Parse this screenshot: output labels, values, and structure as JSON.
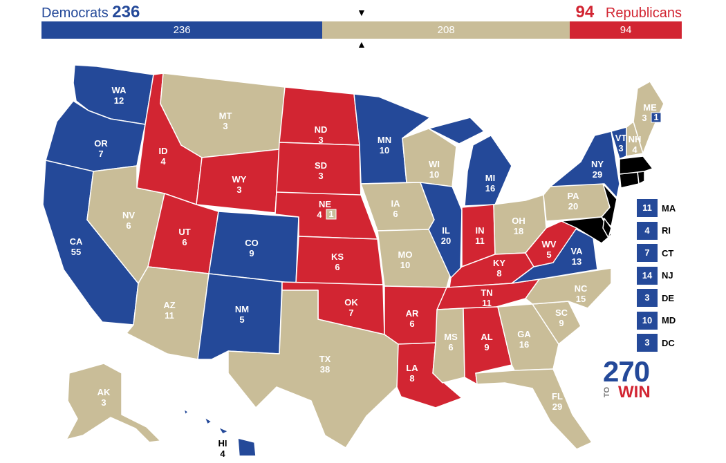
{
  "header": {
    "dem_label": "Democrats",
    "dem_total": "236",
    "rep_label": "Republicans",
    "rep_total": "94"
  },
  "bar": {
    "dem": 236,
    "tossup": 208,
    "rep": 94,
    "dem_text": "236",
    "tossup_text": "208",
    "rep_text": "94"
  },
  "colors": {
    "dem": "#244999",
    "rep": "#d22532",
    "tossup": "#c9bd98"
  },
  "states": {
    "WA": {
      "abbr": "WA",
      "ev": "12",
      "party": "D"
    },
    "OR": {
      "abbr": "OR",
      "ev": "7",
      "party": "D"
    },
    "CA": {
      "abbr": "CA",
      "ev": "55",
      "party": "D"
    },
    "ID": {
      "abbr": "ID",
      "ev": "4",
      "party": "R"
    },
    "NV": {
      "abbr": "NV",
      "ev": "6",
      "party": "T"
    },
    "MT": {
      "abbr": "MT",
      "ev": "3",
      "party": "T"
    },
    "WY": {
      "abbr": "WY",
      "ev": "3",
      "party": "R"
    },
    "UT": {
      "abbr": "UT",
      "ev": "6",
      "party": "R"
    },
    "AZ": {
      "abbr": "AZ",
      "ev": "11",
      "party": "T"
    },
    "CO": {
      "abbr": "CO",
      "ev": "9",
      "party": "D"
    },
    "NM": {
      "abbr": "NM",
      "ev": "5",
      "party": "D"
    },
    "ND": {
      "abbr": "ND",
      "ev": "3",
      "party": "R"
    },
    "SD": {
      "abbr": "SD",
      "ev": "3",
      "party": "R"
    },
    "NE": {
      "abbr": "NE",
      "ev": "4",
      "party": "R",
      "district": "1"
    },
    "KS": {
      "abbr": "KS",
      "ev": "6",
      "party": "R"
    },
    "OK": {
      "abbr": "OK",
      "ev": "7",
      "party": "R"
    },
    "TX": {
      "abbr": "TX",
      "ev": "38",
      "party": "T"
    },
    "MN": {
      "abbr": "MN",
      "ev": "10",
      "party": "D"
    },
    "IA": {
      "abbr": "IA",
      "ev": "6",
      "party": "T"
    },
    "MO": {
      "abbr": "MO",
      "ev": "10",
      "party": "T"
    },
    "AR": {
      "abbr": "AR",
      "ev": "6",
      "party": "R"
    },
    "LA": {
      "abbr": "LA",
      "ev": "8",
      "party": "R"
    },
    "WI": {
      "abbr": "WI",
      "ev": "10",
      "party": "T"
    },
    "IL": {
      "abbr": "IL",
      "ev": "20",
      "party": "D"
    },
    "MI": {
      "abbr": "MI",
      "ev": "16",
      "party": "D"
    },
    "IN": {
      "abbr": "IN",
      "ev": "11",
      "party": "R"
    },
    "OH": {
      "abbr": "OH",
      "ev": "18",
      "party": "T"
    },
    "KY": {
      "abbr": "KY",
      "ev": "8",
      "party": "R"
    },
    "TN": {
      "abbr": "TN",
      "ev": "11",
      "party": "R"
    },
    "MS": {
      "abbr": "MS",
      "ev": "6",
      "party": "T"
    },
    "AL": {
      "abbr": "AL",
      "ev": "9",
      "party": "R"
    },
    "GA": {
      "abbr": "GA",
      "ev": "16",
      "party": "T"
    },
    "FL": {
      "abbr": "FL",
      "ev": "29",
      "party": "T"
    },
    "SC": {
      "abbr": "SC",
      "ev": "9",
      "party": "T"
    },
    "NC": {
      "abbr": "NC",
      "ev": "15",
      "party": "T"
    },
    "VA": {
      "abbr": "VA",
      "ev": "13",
      "party": "D"
    },
    "WV": {
      "abbr": "WV",
      "ev": "5",
      "party": "R"
    },
    "PA": {
      "abbr": "PA",
      "ev": "20",
      "party": "T"
    },
    "NY": {
      "abbr": "NY",
      "ev": "29",
      "party": "D"
    },
    "VT": {
      "abbr": "VT",
      "ev": "3",
      "party": "D"
    },
    "NH": {
      "abbr": "NH",
      "ev": "4",
      "party": "T"
    },
    "ME": {
      "abbr": "ME",
      "ev": "3",
      "party": "T",
      "district": "1"
    },
    "AK": {
      "abbr": "AK",
      "ev": "3",
      "party": "T"
    },
    "HI": {
      "abbr": "HI",
      "ev": "4",
      "party": "D"
    }
  },
  "northeast": [
    {
      "ev": "11",
      "abbr": "MA"
    },
    {
      "ev": "4",
      "abbr": "RI"
    },
    {
      "ev": "7",
      "abbr": "CT"
    },
    {
      "ev": "14",
      "abbr": "NJ"
    },
    {
      "ev": "3",
      "abbr": "DE"
    },
    {
      "ev": "10",
      "abbr": "MD"
    },
    {
      "ev": "3",
      "abbr": "DC"
    }
  ],
  "logo": {
    "number": "270",
    "to": "TO",
    "win": "WIN"
  }
}
